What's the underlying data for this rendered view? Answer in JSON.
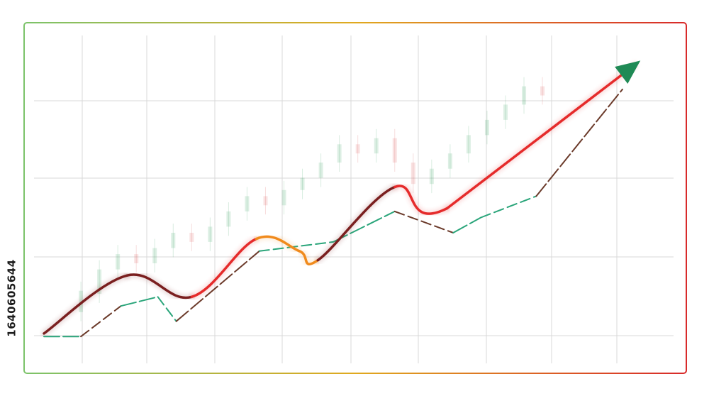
{
  "stock_id": "1640605644",
  "colors": {
    "frame_start": "#7cc36a",
    "frame_mid": "#e0a91f",
    "frame_end": "#d82a2a",
    "grid": "#d9d9d9",
    "candle_up": "#2e9b58",
    "candle_down": "#d84a4a",
    "main_line_low": "#7a1f1f",
    "main_line_high": "#e52b2b",
    "main_line_orange": "#f08a1c",
    "arrow_head": "#1f8a55",
    "secondary_green": "#2aa57a",
    "secondary_brown": "#6b3a2a"
  },
  "chart_data": {
    "type": "line",
    "title": "",
    "xlabel": "",
    "ylabel": "",
    "grid": true,
    "xlim": [
      0,
      100
    ],
    "ylim": [
      0,
      100
    ],
    "series": [
      {
        "style": "solid-gradient-arrow",
        "x": [
          0,
          13.5,
          24,
          34.5,
          41.5,
          44.5,
          57,
          65.5,
          96
        ],
        "y": [
          7,
          26,
          19,
          38,
          34,
          31,
          55,
          48,
          95
        ]
      },
      {
        "style": "dashed-two-tone",
        "x": [
          0,
          6,
          12.5,
          18.5,
          21.5,
          35,
          47,
          57,
          66.5,
          71,
          80,
          94
        ],
        "y": [
          6,
          6,
          16,
          19,
          11,
          34,
          37,
          47,
          40,
          45,
          52,
          87
        ]
      },
      {
        "style": "faint-candlesticks",
        "candles": [
          {
            "x": 6,
            "o": 14,
            "c": 21
          },
          {
            "x": 9,
            "o": 20,
            "c": 28
          },
          {
            "x": 12,
            "o": 28,
            "c": 33
          },
          {
            "x": 15,
            "o": 33,
            "c": 30
          },
          {
            "x": 18,
            "o": 30,
            "c": 35
          },
          {
            "x": 21,
            "o": 35,
            "c": 40
          },
          {
            "x": 24,
            "o": 40,
            "c": 37
          },
          {
            "x": 27,
            "o": 37,
            "c": 42
          },
          {
            "x": 30,
            "o": 42,
            "c": 47
          },
          {
            "x": 33,
            "o": 47,
            "c": 52
          },
          {
            "x": 36,
            "o": 52,
            "c": 49
          },
          {
            "x": 39,
            "o": 49,
            "c": 54
          },
          {
            "x": 42,
            "o": 54,
            "c": 58
          },
          {
            "x": 45,
            "o": 58,
            "c": 63
          },
          {
            "x": 48,
            "o": 63,
            "c": 69
          },
          {
            "x": 51,
            "o": 69,
            "c": 66
          },
          {
            "x": 54,
            "o": 66,
            "c": 71
          },
          {
            "x": 57,
            "o": 71,
            "c": 63
          },
          {
            "x": 60,
            "o": 63,
            "c": 56
          },
          {
            "x": 63,
            "o": 56,
            "c": 61
          },
          {
            "x": 66,
            "o": 61,
            "c": 66
          },
          {
            "x": 69,
            "o": 66,
            "c": 72
          },
          {
            "x": 72,
            "o": 72,
            "c": 77
          },
          {
            "x": 75,
            "o": 77,
            "c": 82
          },
          {
            "x": 78,
            "o": 82,
            "c": 88
          },
          {
            "x": 81,
            "o": 88,
            "c": 85
          }
        ]
      }
    ]
  }
}
